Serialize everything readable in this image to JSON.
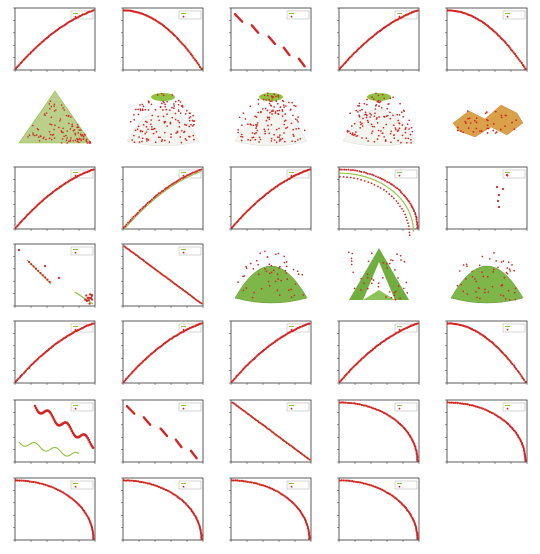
{
  "figure": {
    "columns": 5,
    "rows": 7
  },
  "colors": {
    "reference": "#8fc23f",
    "obtained": "#d42424",
    "frame": "#333333"
  },
  "chart_data": [
    {
      "id": "zdt1",
      "type": "scatter",
      "shape": "convex",
      "title": ""
    },
    {
      "id": "zdt2",
      "type": "scatter",
      "shape": "concave",
      "title": ""
    },
    {
      "id": "zdt3",
      "type": "scatter",
      "shape": "disconnected",
      "title": ""
    },
    {
      "id": "zdt4",
      "type": "scatter",
      "shape": "convex",
      "title": ""
    },
    {
      "id": "zdt6",
      "type": "scatter",
      "shape": "concave",
      "title": ""
    },
    {
      "id": "dtlz1",
      "type": "scatter",
      "shape": "tri3d",
      "title": ""
    },
    {
      "id": "dtlz2",
      "type": "scatter",
      "shape": "dome3d",
      "title": ""
    },
    {
      "id": "dtlz3",
      "type": "scatter",
      "shape": "dome3d",
      "title": ""
    },
    {
      "id": "dtlz4",
      "type": "scatter",
      "shape": "dome3d",
      "title": ""
    },
    {
      "id": "dtlz7",
      "type": "scatter",
      "shape": "wave3d",
      "title": ""
    },
    {
      "id": "uf1",
      "type": "scatter",
      "shape": "convex",
      "title": ""
    },
    {
      "id": "uf2",
      "type": "scatter",
      "shape": "convex-double",
      "title": ""
    },
    {
      "id": "uf3",
      "type": "scatter",
      "shape": "convex",
      "title": ""
    },
    {
      "id": "uf4",
      "type": "scatter",
      "shape": "concave-double",
      "title": ""
    },
    {
      "id": "uf5",
      "type": "scatter",
      "shape": "sparse",
      "title": ""
    },
    {
      "id": "uf6",
      "type": "scatter",
      "shape": "segments-cluster",
      "title": ""
    },
    {
      "id": "uf7",
      "type": "scatter",
      "shape": "linear",
      "title": ""
    },
    {
      "id": "uf8",
      "type": "scatter",
      "shape": "dome3d-green",
      "title": ""
    },
    {
      "id": "uf9",
      "type": "scatter",
      "shape": "tent3d",
      "title": ""
    },
    {
      "id": "uf10",
      "type": "scatter",
      "shape": "dome3d-green",
      "title": ""
    },
    {
      "id": "lz1",
      "type": "scatter",
      "shape": "convex",
      "title": ""
    },
    {
      "id": "lz2",
      "type": "scatter",
      "shape": "convex",
      "title": ""
    },
    {
      "id": "lz3",
      "type": "scatter",
      "shape": "convex",
      "title": ""
    },
    {
      "id": "lz4",
      "type": "scatter",
      "shape": "convex",
      "title": ""
    },
    {
      "id": "lz5",
      "type": "scatter",
      "shape": "concave",
      "title": ""
    },
    {
      "id": "wfg1",
      "type": "scatter",
      "shape": "wavy-green",
      "title": ""
    },
    {
      "id": "wfg2",
      "type": "scatter",
      "shape": "disconnected",
      "title": ""
    },
    {
      "id": "wfg3",
      "type": "scatter",
      "shape": "linear",
      "title": ""
    },
    {
      "id": "wfg4",
      "type": "scatter",
      "shape": "concave-big",
      "title": ""
    },
    {
      "id": "wfg5",
      "type": "scatter",
      "shape": "concave-big",
      "title": ""
    },
    {
      "id": "wfg6",
      "type": "scatter",
      "shape": "concave-big",
      "title": ""
    },
    {
      "id": "wfg7",
      "type": "scatter",
      "shape": "concave-big",
      "title": ""
    },
    {
      "id": "wfg8",
      "type": "scatter",
      "shape": "concave-big",
      "title": ""
    },
    {
      "id": "wfg9",
      "type": "scatter",
      "shape": "concave-big",
      "title": ""
    }
  ]
}
